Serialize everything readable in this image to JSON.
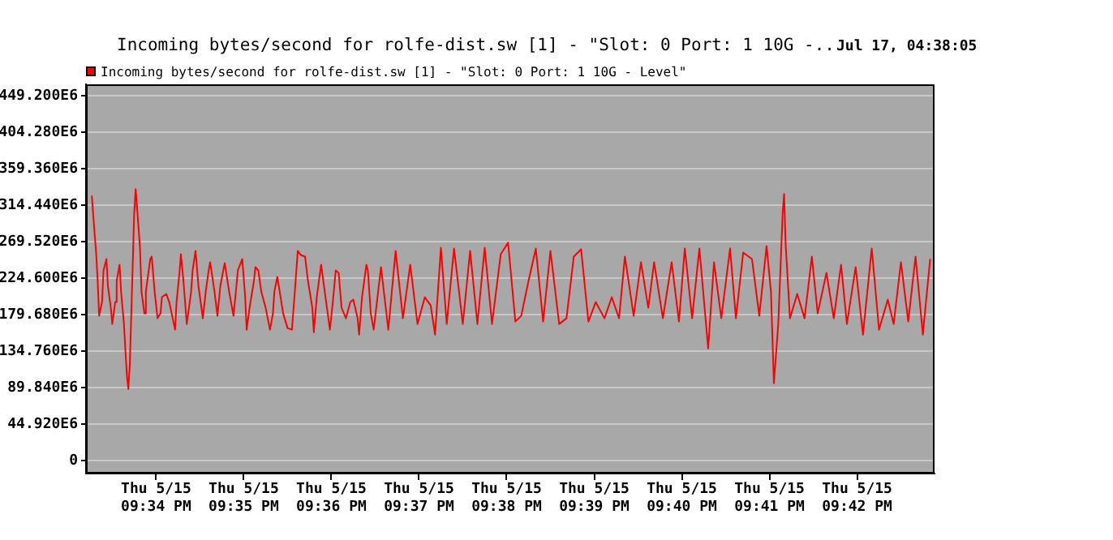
{
  "chart_data": {
    "type": "line",
    "title": "Incoming bytes/second for rolfe-dist.sw [1] - \"Slot: 0 Port: 1 10G -..",
    "subtitle": "Jul 17, 04:38:05",
    "xlim": [
      "--05-15T21:33:12",
      "--05-15T21:42:53"
    ],
    "xticks": [
      {
        "value": "--05-15T21:34",
        "label": "Thu 5/15\n09:34 PM"
      },
      {
        "value": "--05-15T21:35",
        "label": "Thu 5/15\n09:35 PM"
      },
      {
        "value": "--05-15T21:36",
        "label": "Thu 5/15\n09:36 PM"
      },
      {
        "value": "--05-15T21:37",
        "label": "Thu 5/15\n09:37 PM"
      },
      {
        "value": "--05-15T21:38",
        "label": "Thu 5/15\n09:38 PM"
      },
      {
        "value": "--05-15T21:39",
        "label": "Thu 5/15\n09:39 PM"
      },
      {
        "value": "--05-15T21:40",
        "label": "Thu 5/15\n09:40 PM"
      },
      {
        "value": "--05-15T21:41",
        "label": "Thu 5/15\n09:41 PM"
      },
      {
        "value": "--05-15T21:42",
        "label": "Thu 5/15\n09:42 PM"
      }
    ],
    "ylim": [
      -16000000,
      463000000
    ],
    "yticks": [
      0,
      {
        "value": 44920000,
        "label": "44.920E6"
      },
      {
        "value": 89840000,
        "label": "89.840E6"
      },
      {
        "value": 134760000,
        "label": "134.760E6"
      },
      {
        "value": 179680000,
        "label": "179.680E6"
      },
      {
        "value": 224600000,
        "label": "224.600E6"
      },
      {
        "value": 269520000,
        "label": "269.520E6"
      },
      {
        "value": 314440000,
        "label": "314.440E6"
      },
      {
        "value": 359360000,
        "label": "359.360E6"
      },
      {
        "value": 404280000,
        "label": "404.280E6"
      },
      {
        "value": 449200000,
        "label": "449.200E6"
      }
    ],
    "grid": "y",
    "legend": "top left",
    "series": [
      {
        "name": "Incoming bytes/second for rolfe-dist.sw [1] - \"Slot: 0 Port: 1 10G - Level\"",
        "color": "#ff0000",
        "x": [
          "--05-15T21:33:16",
          "--05-15T21:33:17",
          "--05-15T21:33:19",
          "--05-15T21:33:20",
          "--05-15T21:33:21",
          "--05-15T21:33:23",
          "--05-15T21:33:24",
          "--05-15T21:33:26",
          "--05-15T21:33:27",
          "--05-15T21:33:29",
          "--05-15T21:33:30",
          "--05-15T21:33:32",
          "--05-15T21:33:33",
          "--05-15T21:33:35",
          "--05-15T21:33:36",
          "--05-15T21:33:38",
          "--05-15T21:33:39",
          "--05-15T21:33:40",
          "--05-15T21:33:41",
          "--05-15T21:33:42",
          "--05-15T21:33:44",
          "--05-15T21:33:45",
          "--05-15T21:33:46",
          "--05-15T21:33:47",
          "--05-15T21:33:49",
          "--05-15T21:33:50",
          "--05-15T21:33:52",
          "--05-15T21:33:53",
          "--05-15T21:33:56",
          "--05-15T21:33:57",
          "--05-15T21:33:59",
          "--05-15T21:34:01",
          "--05-15T21:34:03",
          "--05-15T21:34:04",
          "--05-15T21:34:07",
          "--05-15T21:34:09",
          "--05-15T21:34:11",
          "--05-15T21:34:13",
          "--05-15T21:34:14",
          "--05-15T21:34:16",
          "--05-15T21:34:17",
          "--05-15T21:34:19",
          "--05-15T21:34:21",
          "--05-15T21:34:24",
          "--05-15T21:34:25",
          "--05-15T21:34:27",
          "--05-15T21:34:29",
          "--05-15T21:34:32",
          "--05-15T21:34:34",
          "--05-15T21:34:36",
          "--05-15T21:34:37",
          "--05-15T21:34:40",
          "--05-15T21:34:42",
          "--05-15T21:34:44",
          "--05-15T21:34:46",
          "--05-15T21:34:47",
          "--05-15T21:34:50",
          "--05-15T21:34:53",
          "--05-15T21:34:55",
          "--05-15T21:34:56",
          "--05-15T21:34:59",
          "--05-15T21:35:01",
          "--05-15T21:35:02",
          "--05-15T21:35:04",
          "--05-15T21:35:07",
          "--05-15T21:35:08",
          "--05-15T21:35:10",
          "--05-15T21:35:12",
          "--05-15T21:35:15",
          "--05-15T21:35:18",
          "--05-15T21:35:20",
          "--05-15T21:35:21",
          "--05-15T21:35:23",
          "--05-15T21:35:24",
          "--05-15T21:35:27",
          "--05-15T21:35:30",
          "--05-15T21:35:33",
          "--05-15T21:35:35",
          "--05-15T21:35:37",
          "--05-15T21:35:39",
          "--05-15T21:35:42",
          "--05-15T21:35:44",
          "--05-15T21:35:47",
          "--05-15T21:35:48",
          "--05-15T21:35:50",
          "--05-15T21:35:53",
          "--05-15T21:35:56",
          "--05-15T21:35:59",
          "--05-15T21:36:01",
          "--05-15T21:36:03",
          "--05-15T21:36:05",
          "--05-15T21:36:07",
          "--05-15T21:36:10",
          "--05-15T21:36:13",
          "--05-15T21:36:15",
          "--05-15T21:36:18",
          "--05-15T21:36:19",
          "--05-15T21:36:21",
          "--05-15T21:36:24",
          "--05-15T21:36:25",
          "--05-15T21:36:27",
          "--05-15T21:36:29",
          "--05-15T21:36:34",
          "--05-15T21:36:39",
          "--05-15T21:36:44",
          "--05-15T21:36:49",
          "--05-15T21:36:54",
          "--05-15T21:36:59",
          "--05-15T21:37:04",
          "--05-15T21:37:08",
          "--05-15T21:37:11",
          "--05-15T21:37:15",
          "--05-15T21:37:19",
          "--05-15T21:37:24",
          "--05-15T21:37:30",
          "--05-15T21:37:35",
          "--05-15T21:37:40",
          "--05-15T21:37:45",
          "--05-15T21:37:50",
          "--05-15T21:37:56",
          "--05-15T21:38:01",
          "--05-15T21:38:06",
          "--05-15T21:38:10",
          "--05-15T21:38:15",
          "--05-15T21:38:20",
          "--05-15T21:38:25",
          "--05-15T21:38:30",
          "--05-15T21:38:36",
          "--05-15T21:38:41",
          "--05-15T21:38:46",
          "--05-15T21:38:51",
          "--05-15T21:38:56",
          "--05-15T21:39:01",
          "--05-15T21:39:07",
          "--05-15T21:39:12",
          "--05-15T21:39:17",
          "--05-15T21:39:21",
          "--05-15T21:39:27",
          "--05-15T21:39:32",
          "--05-15T21:39:37",
          "--05-15T21:39:41",
          "--05-15T21:39:47",
          "--05-15T21:39:53",
          "--05-15T21:39:58",
          "--05-15T21:40:02",
          "--05-15T21:40:07",
          "--05-15T21:40:12",
          "--05-15T21:40:18",
          "--05-15T21:40:22",
          "--05-15T21:40:27",
          "--05-15T21:40:33",
          "--05-15T21:40:37",
          "--05-15T21:40:42",
          "--05-15T21:40:48",
          "--05-15T21:40:53",
          "--05-15T21:40:58",
          "--05-15T21:41:01",
          "--05-15T21:41:03",
          "--05-15T21:41:06",
          "--05-15T21:41:09",
          "--05-15T21:41:10",
          "--05-15T21:41:11",
          "--05-15T21:41:14",
          "--05-15T21:41:19",
          "--05-15T21:41:24",
          "--05-15T21:41:29",
          "--05-15T21:41:33",
          "--05-15T21:41:39",
          "--05-15T21:41:44",
          "--05-15T21:41:49",
          "--05-15T21:41:53",
          "--05-15T21:41:59",
          "--05-15T21:42:04",
          "--05-15T21:42:10",
          "--05-15T21:42:15",
          "--05-15T21:42:21",
          "--05-15T21:42:25",
          "--05-15T21:42:30",
          "--05-15T21:42:35",
          "--05-15T21:42:40",
          "--05-15T21:42:45",
          "--05-15T21:42:50"
        ],
        "values": [
          326000000,
          301000000,
          254000000,
          221000000,
          178000000,
          195000000,
          234000000,
          248000000,
          215000000,
          188000000,
          168000000,
          195000000,
          221000000,
          241000000,
          208000000,
          168000000,
          135000000,
          105000000,
          88000000,
          118000000,
          241000000,
          304000000,
          334000000,
          311000000,
          261000000,
          208000000,
          181000000,
          208000000,
          248000000,
          251000000,
          208000000,
          175000000,
          181000000,
          201000000,
          205000000,
          195000000,
          178000000,
          161000000,
          195000000,
          231000000,
          254000000,
          215000000,
          168000000,
          208000000,
          234000000,
          258000000,
          215000000,
          175000000,
          208000000,
          234000000,
          244000000,
          208000000,
          178000000,
          215000000,
          234000000,
          243000000,
          208000000,
          178000000,
          215000000,
          234000000,
          248000000,
          201000000,
          161000000,
          188000000,
          221000000,
          238000000,
          234000000,
          208000000,
          188000000,
          161000000,
          181000000,
          208000000,
          226000000,
          215000000,
          181000000,
          163000000,
          161000000,
          208000000,
          258000000,
          253000000,
          251000000,
          221000000,
          188000000,
          158000000,
          201000000,
          241000000,
          201000000,
          161000000,
          195000000,
          234000000,
          231000000,
          188000000,
          175000000,
          195000000,
          198000000,
          175000000,
          155000000,
          201000000,
          241000000,
          234000000,
          181000000,
          161000000,
          238000000,
          161000000,
          258000000,
          175000000,
          241000000,
          168000000,
          201000000,
          191000000,
          155000000,
          262000000,
          168000000,
          261000000,
          168000000,
          258000000,
          168000000,
          262000000,
          168000000,
          254000000,
          268000000,
          171000000,
          178000000,
          221000000,
          261000000,
          171000000,
          258000000,
          168000000,
          175000000,
          251000000,
          260000000,
          171000000,
          195000000,
          175000000,
          201000000,
          175000000,
          251000000,
          178000000,
          244000000,
          188000000,
          244000000,
          175000000,
          244000000,
          171000000,
          261000000,
          175000000,
          261000000,
          138000000,
          244000000,
          175000000,
          261000000,
          175000000,
          256000000,
          248000000,
          178000000,
          264000000,
          208000000,
          95000000,
          168000000,
          304000000,
          328000000,
          268000000,
          175000000,
          205000000,
          175000000,
          251000000,
          181000000,
          231000000,
          175000000,
          241000000,
          168000000,
          238000000,
          155000000,
          261000000,
          161000000,
          198000000,
          168000000,
          244000000,
          171000000,
          251000000,
          155000000,
          248000000
        ]
      }
    ]
  }
}
